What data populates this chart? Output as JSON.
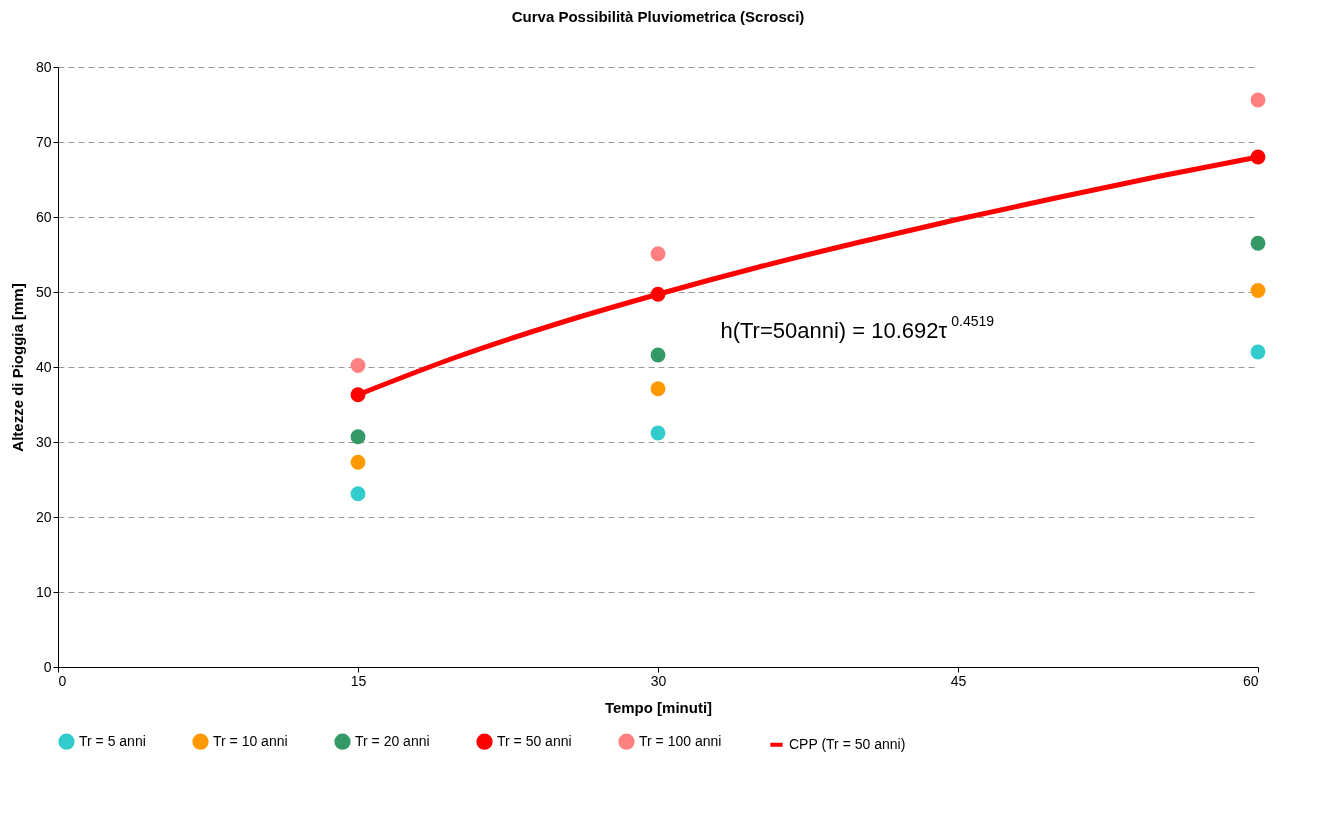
{
  "chart_data": {
    "type": "scatter",
    "title": "Curva Possibilità Pluviometrica (Scrosci)",
    "xlabel": "Tempo [minuti]",
    "ylabel": "Altezze di Pioggia [mm]",
    "annotations": [
      "h(Tr=50anni) = 10.692τ$^{0.4519}$"
    ],
    "x": [
      15,
      30,
      60
    ],
    "series": [
      {
        "name": "Tr = 5 anni",
        "color": "#33cccc",
        "values": [
          23.1,
          31.2,
          42.0
        ],
        "marker": "circle"
      },
      {
        "name": "Tr = 10 anni",
        "color": "#ff9900",
        "values": [
          27.3,
          37.1,
          50.2
        ],
        "marker": "circle"
      },
      {
        "name": "Tr = 20 anni",
        "color": "#339966",
        "values": [
          30.7,
          41.6,
          56.5
        ],
        "marker": "circle"
      },
      {
        "name": "Tr = 50 anni",
        "color": "#ff0000",
        "values": [
          36.3,
          49.7,
          68.0
        ],
        "marker": "circle"
      },
      {
        "name": "Tr = 100 anni",
        "color": "#ff8080",
        "values": [
          40.2,
          55.1,
          75.6
        ],
        "marker": "circle"
      },
      {
        "name": "CPP (Tr = 50 anni)",
        "type": "line",
        "color": "#ff0000",
        "marker": "none",
        "line_style": "solid",
        "x": [
          15,
          20,
          25,
          30,
          35,
          40,
          45,
          50,
          55,
          60
        ],
        "values": [
          36.3,
          41.4,
          45.8,
          49.7,
          53.3,
          56.6,
          59.7,
          62.6,
          65.4,
          68.0
        ]
      }
    ],
    "xlim": [
      0,
      60
    ],
    "xticks": [
      0,
      15,
      30,
      45,
      60
    ],
    "ylim": [
      0,
      80
    ],
    "yticks": [
      0,
      10,
      20,
      30,
      40,
      50,
      60,
      70,
      80
    ],
    "grid": "y",
    "legend": "bottom"
  }
}
